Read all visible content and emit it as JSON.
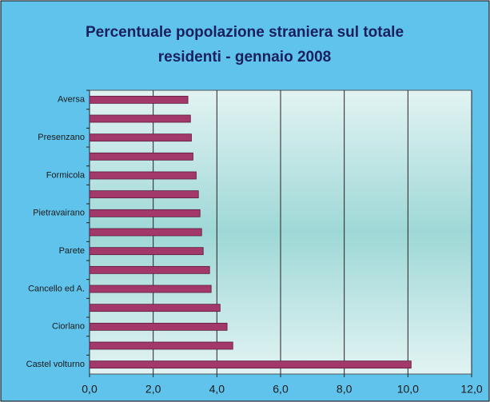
{
  "chart_data": {
    "type": "bar",
    "orientation": "horizontal",
    "title": [
      "Percentuale popolazione straniera sul totale",
      "residenti -  gennaio 2008"
    ],
    "categories": [
      "Aversa",
      null,
      "Presenzano",
      null,
      "Formicola",
      null,
      "Pietravairano",
      null,
      "Parete",
      null,
      "Cancello ed A.",
      null,
      "Ciorlano",
      null,
      "Castel volturno"
    ],
    "values": [
      3.09,
      3.17,
      3.2,
      3.25,
      3.35,
      3.42,
      3.47,
      3.52,
      3.57,
      3.77,
      3.82,
      4.1,
      4.32,
      4.5,
      10.1
    ],
    "color": "#a3386b",
    "xlim": [
      0,
      12
    ],
    "xticks": [
      {
        "value": 0,
        "label": "0,0"
      },
      {
        "value": 2,
        "label": "2,0"
      },
      {
        "value": 4,
        "label": "4,0"
      },
      {
        "value": 6,
        "label": "6,0"
      },
      {
        "value": 8,
        "label": "8,0"
      },
      {
        "value": 10,
        "label": "10,0"
      },
      {
        "value": 12,
        "label": "12,0"
      }
    ],
    "grid": true
  }
}
